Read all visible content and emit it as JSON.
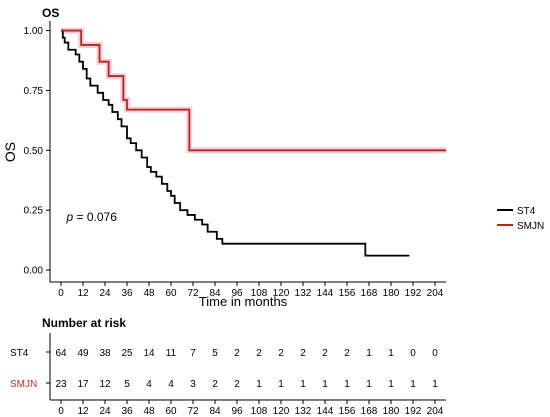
{
  "chart_data": [
    {
      "type": "line",
      "subtype": "kaplan-meier-step",
      "title": "OS",
      "xlabel": "Time in months",
      "ylabel": "OS",
      "xlim": [
        -6,
        210
      ],
      "ylim": [
        -0.05,
        1.04
      ],
      "x_ticks": [
        0,
        12,
        24,
        36,
        48,
        60,
        72,
        84,
        96,
        108,
        120,
        132,
        144,
        156,
        168,
        180,
        192,
        204
      ],
      "y_ticks": [
        0.0,
        0.25,
        0.5,
        0.75,
        1.0
      ],
      "y_tick_labels": [
        "0.00",
        "0.25",
        "0.50",
        "0.75",
        "1.00"
      ],
      "grid": false,
      "legend": "right",
      "annotation": {
        "p_label": "p",
        "p_value_text": " = 0.076",
        "x": 3,
        "y": 0.205
      },
      "series": [
        {
          "name": "ST4",
          "color": "#000000",
          "steps": [
            [
              0,
              1.0
            ],
            [
              1,
              0.97
            ],
            [
              2,
              0.95
            ],
            [
              4,
              0.92
            ],
            [
              8,
              0.9
            ],
            [
              10,
              0.87
            ],
            [
              12,
              0.84
            ],
            [
              14,
              0.8
            ],
            [
              16,
              0.77
            ],
            [
              20,
              0.74
            ],
            [
              23,
              0.71
            ],
            [
              26,
              0.69
            ],
            [
              28,
              0.66
            ],
            [
              31,
              0.63
            ],
            [
              33,
              0.6
            ],
            [
              36,
              0.55
            ],
            [
              38,
              0.53
            ],
            [
              41,
              0.5
            ],
            [
              44,
              0.47
            ],
            [
              47,
              0.43
            ],
            [
              49,
              0.41
            ],
            [
              52,
              0.39
            ],
            [
              55,
              0.36
            ],
            [
              58,
              0.33
            ],
            [
              60,
              0.31
            ],
            [
              62,
              0.28
            ],
            [
              65,
              0.25
            ],
            [
              69,
              0.23
            ],
            [
              73,
              0.21
            ],
            [
              77,
              0.19
            ],
            [
              80,
              0.16
            ],
            [
              85,
              0.13
            ],
            [
              88,
              0.11
            ],
            [
              166,
              0.06
            ],
            [
              190,
              0.06
            ]
          ]
        },
        {
          "name": "SMJN",
          "color": "#b22a16",
          "ci_color": "#e8a0c4",
          "steps": [
            [
              0,
              1.0
            ],
            [
              11,
              0.94
            ],
            [
              21,
              0.87
            ],
            [
              26,
              0.81
            ],
            [
              34,
              0.71
            ],
            [
              36,
              0.67
            ],
            [
              70,
              0.5
            ],
            [
              210,
              0.5
            ]
          ]
        }
      ]
    },
    {
      "type": "table",
      "title": "Number at risk",
      "columns": [
        0,
        12,
        24,
        36,
        48,
        60,
        72,
        84,
        96,
        108,
        120,
        132,
        144,
        156,
        168,
        180,
        192,
        204
      ],
      "rows": [
        {
          "label": "ST4",
          "label_color": "#000000",
          "values": [
            64,
            49,
            38,
            25,
            14,
            11,
            7,
            5,
            2,
            2,
            2,
            2,
            2,
            2,
            1,
            1,
            0,
            0
          ]
        },
        {
          "label": "SMJN",
          "label_color": "#c0302a",
          "values": [
            23,
            17,
            12,
            5,
            4,
            4,
            3,
            2,
            2,
            1,
            1,
            1,
            1,
            1,
            1,
            1,
            1,
            1
          ]
        }
      ]
    }
  ]
}
